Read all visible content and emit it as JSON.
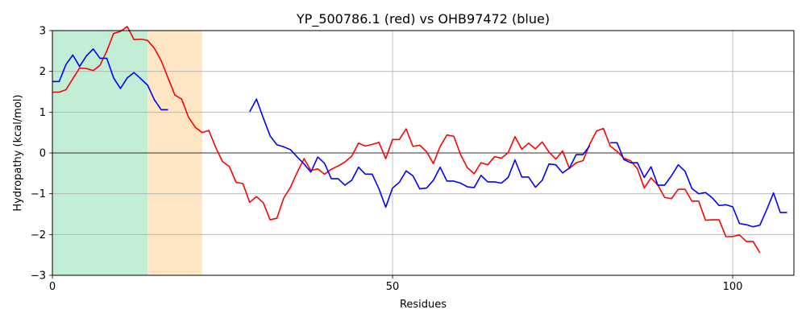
{
  "chart_data": {
    "type": "line",
    "title": "YP_500786.1 (red) vs OHB97472 (blue)",
    "xlabel": "Residues",
    "ylabel": "Hydropathy (kcal/mol)",
    "xlim": [
      0,
      109
    ],
    "ylim": [
      -3,
      3
    ],
    "xticks": [
      0,
      50,
      100
    ],
    "yticks": [
      -3,
      -2,
      -1,
      0,
      1,
      2,
      3
    ],
    "grid": true,
    "zero_line": true,
    "regions": [
      {
        "start": 0,
        "end": 14,
        "color": "#c1eed4"
      },
      {
        "start": 14,
        "end": 22,
        "color": "#fee6c4"
      }
    ],
    "series": [
      {
        "color": "#ff0000",
        "segments": [
          {
            "x_start": 0,
            "values": [
              1.49,
              1.49,
              1.55,
              1.82,
              2.08,
              2.07,
              2.02,
              2.15,
              2.5,
              2.93,
              2.98,
              3.1,
              2.78,
              2.79,
              2.76,
              2.56,
              2.26,
              1.84,
              1.42,
              1.32,
              0.88,
              0.63,
              0.5,
              0.55,
              0.14,
              -0.21,
              -0.33,
              -0.72,
              -0.75,
              -1.21,
              -1.07,
              -1.22,
              -1.64,
              -1.6,
              -1.11,
              -0.84,
              -0.47,
              -0.14,
              -0.43,
              -0.39,
              -0.52,
              -0.4,
              -0.32,
              -0.22,
              -0.08,
              0.24,
              0.17,
              0.21,
              0.26,
              -0.14,
              0.33,
              0.33,
              0.59,
              0.16,
              0.19,
              0.03,
              -0.26,
              0.16,
              0.44,
              0.41,
              -0.04,
              -0.36,
              -0.51,
              -0.24,
              -0.29,
              -0.09,
              -0.13,
              0.01,
              0.4,
              0.09,
              0.24,
              0.1,
              0.27,
              0.02,
              -0.15,
              0.05,
              -0.38,
              -0.24,
              -0.19,
              0.22,
              0.54,
              0.6,
              0.17,
              0.04,
              -0.13,
              -0.19,
              -0.39,
              -0.86,
              -0.61,
              -0.79,
              -1.09,
              -1.12,
              -0.89,
              -0.89,
              -1.18,
              -1.18,
              -1.65,
              -1.64,
              -1.64,
              -2.05,
              -2.05,
              -2.01,
              -2.17,
              -2.17,
              -2.45
            ]
          }
        ]
      },
      {
        "color": "#0000ff",
        "segments": [
          {
            "x_start": 0,
            "values": [
              1.75,
              1.75,
              2.17,
              2.4,
              2.12,
              2.38,
              2.55,
              2.32,
              2.32,
              1.84,
              1.58,
              1.84,
              1.97,
              1.82,
              1.66,
              1.3,
              1.06,
              1.06
            ]
          },
          {
            "x_start": 29,
            "values": [
              1.01,
              1.32,
              0.86,
              0.42,
              0.2,
              0.15,
              0.08,
              -0.1,
              -0.27,
              -0.47,
              -0.1,
              -0.25,
              -0.63,
              -0.63,
              -0.79,
              -0.67,
              -0.35,
              -0.52,
              -0.52,
              -0.88,
              -1.33,
              -0.86,
              -0.72,
              -0.44,
              -0.56,
              -0.88,
              -0.86,
              -0.67,
              -0.35,
              -0.69,
              -0.69,
              -0.74,
              -0.83,
              -0.85,
              -0.55,
              -0.71,
              -0.71,
              -0.74,
              -0.6,
              -0.17,
              -0.59,
              -0.59,
              -0.84,
              -0.67,
              -0.27,
              -0.29,
              -0.49,
              -0.37,
              -0.04,
              -0.04,
              0.18
            ]
          },
          {
            "x_start": 82,
            "values": [
              0.25,
              0.25,
              -0.16,
              -0.24,
              -0.24,
              -0.6,
              -0.34,
              -0.79,
              -0.79,
              -0.56,
              -0.29,
              -0.45,
              -0.87,
              -1.0,
              -0.97,
              -1.1,
              -1.29,
              -1.27,
              -1.32,
              -1.73,
              -1.76,
              -1.81,
              -1.77,
              -1.39,
              -0.98,
              -1.46,
              -1.46
            ]
          }
        ]
      }
    ]
  }
}
